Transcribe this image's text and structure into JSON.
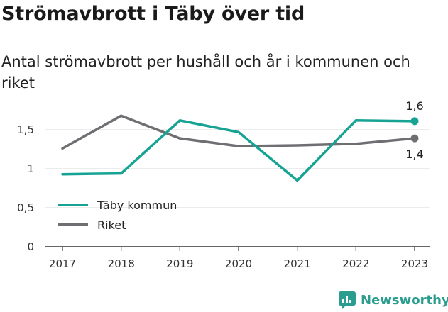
{
  "title": "Strömavbrott i Täby över tid",
  "subtitle": "Antal strömavbrott per hushåll och år i kommunen och riket",
  "brand": {
    "name": "Newsworthy",
    "icon": "newsworthy-logo-icon"
  },
  "colors": {
    "taby": "#16a394",
    "riket": "#6e6e73",
    "axis": "#333333",
    "grid": "#d9d9d9",
    "brand": "#2a9d8f"
  },
  "chart_data": {
    "type": "line",
    "title": "Strömavbrott i Täby över tid",
    "subtitle": "Antal strömavbrott per hushåll och år i kommunen och riket",
    "xlabel": "",
    "ylabel": "",
    "x": [
      "2017",
      "2018",
      "2019",
      "2020",
      "2021",
      "2022",
      "2023"
    ],
    "ylim": [
      0,
      1.8
    ],
    "yticks": [
      0,
      0.5,
      1,
      1.5
    ],
    "ytick_labels": [
      "0",
      "0,5",
      "1",
      "1,5"
    ],
    "grid": true,
    "legend_position": "bottom-left",
    "series": [
      {
        "name": "Täby kommun",
        "color": "#16a394",
        "values": [
          0.93,
          0.94,
          1.62,
          1.47,
          0.85,
          1.62,
          1.61
        ],
        "end_label": "1,6"
      },
      {
        "name": "Riket",
        "color": "#6e6e73",
        "values": [
          1.26,
          1.68,
          1.39,
          1.29,
          1.3,
          1.32,
          1.39
        ],
        "end_label": "1,4"
      }
    ]
  }
}
